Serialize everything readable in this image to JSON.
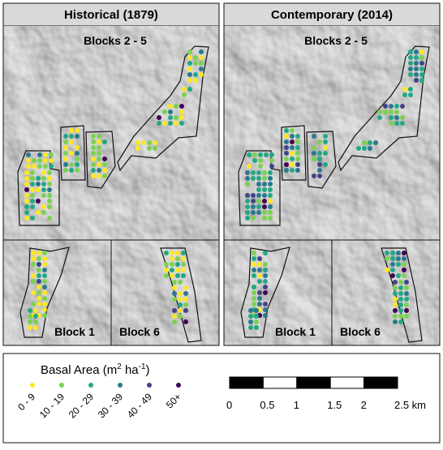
{
  "panels": [
    {
      "title": "Historical (1879)",
      "labels": [
        "Blocks 2 - 5",
        "Block 1",
        "Block 6"
      ]
    },
    {
      "title": "Contemporary (2014)",
      "labels": [
        "Blocks 2 - 5",
        "Block 1",
        "Block 6"
      ]
    }
  ],
  "legend": {
    "title_parts": [
      "Basal Area (m",
      "2",
      " ha",
      "-1",
      ")"
    ],
    "classes": [
      {
        "label": "0 - 9",
        "color": "#fde725"
      },
      {
        "label": "10 - 19",
        "color": "#7ad151"
      },
      {
        "label": "20 - 29",
        "color": "#22a884"
      },
      {
        "label": "30 - 39",
        "color": "#2a788e"
      },
      {
        "label": "40 - 49",
        "color": "#414487"
      },
      {
        "label": "50+",
        "color": "#440154"
      }
    ]
  },
  "scale_bar": {
    "ticks": [
      "0",
      "0.5",
      "1",
      "1.5",
      "2",
      "2.5 km"
    ]
  }
}
